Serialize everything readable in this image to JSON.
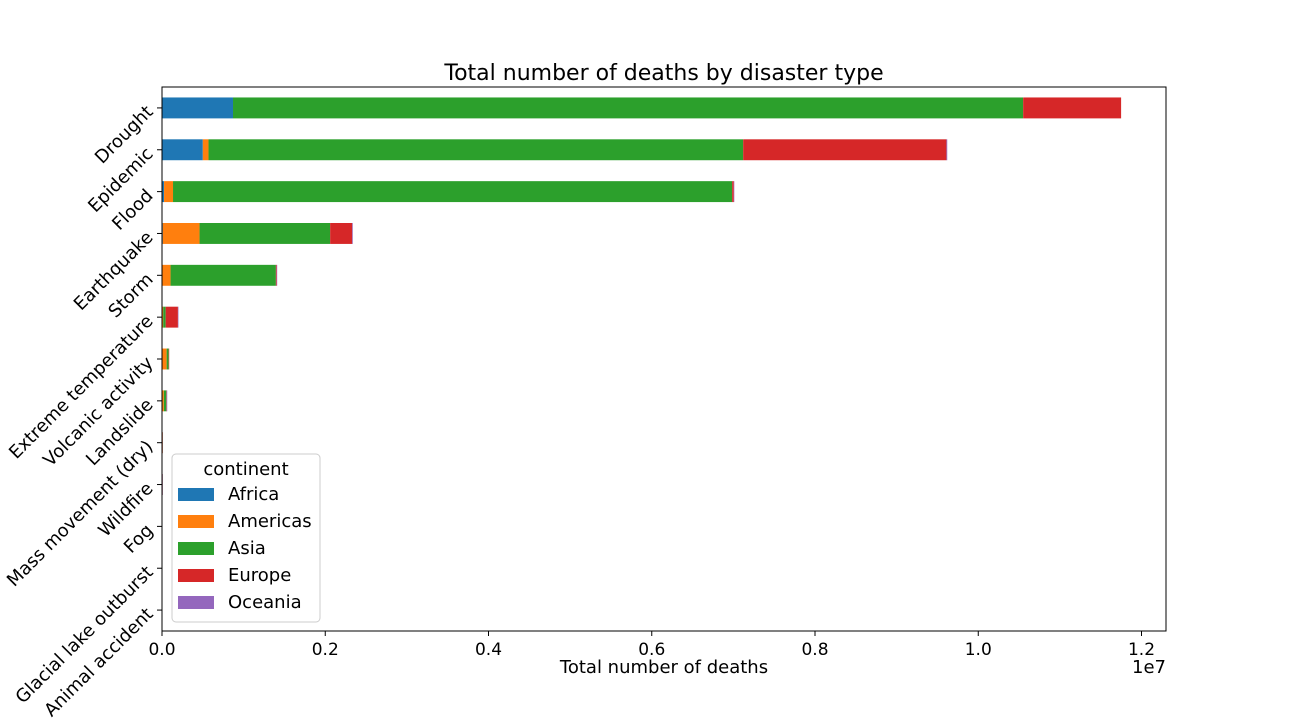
{
  "chart_data": {
    "type": "bar",
    "orientation": "horizontal",
    "stacked": true,
    "title": "Total number of deaths by disaster type",
    "xlabel": "Total number of deaths",
    "ylabel": "",
    "x_scale_label": "1e7",
    "xlim": [
      0,
      12300000
    ],
    "x_ticks": [
      0,
      2000000,
      4000000,
      6000000,
      8000000,
      10000000,
      12000000
    ],
    "x_tick_labels": [
      "0.0",
      "0.2",
      "0.4",
      "0.6",
      "0.8",
      "1.0",
      "1.2"
    ],
    "grid": false,
    "legend_position": "lower-left",
    "legend_title": "continent",
    "categories": [
      "Drought",
      "Epidemic",
      "Flood",
      "Earthquake",
      "Storm",
      "Extreme temperature",
      "Volcanic activity",
      "Landslide",
      "Mass movement (dry)",
      "Wildfire",
      "Fog",
      "Glacial lake outburst",
      "Animal accident"
    ],
    "series": [
      {
        "name": "Africa",
        "color": "#1f77b4",
        "values": [
          870000,
          500000,
          25000,
          10000,
          5000,
          5000,
          2000,
          3000,
          500,
          300,
          0,
          0,
          0
        ]
      },
      {
        "name": "Americas",
        "color": "#ff7f0e",
        "values": [
          0,
          70000,
          110000,
          450000,
          100000,
          10000,
          55000,
          20000,
          1000,
          500,
          0,
          0,
          0
        ]
      },
      {
        "name": "Asia",
        "color": "#2ca02c",
        "values": [
          9680000,
          6550000,
          6850000,
          1600000,
          1290000,
          30000,
          25000,
          30000,
          1000,
          800,
          4000,
          1000,
          0
        ]
      },
      {
        "name": "Europe",
        "color": "#d62728",
        "values": [
          1200000,
          2490000,
          20000,
          270000,
          10000,
          150000,
          1000,
          5000,
          200,
          500,
          0,
          0,
          0
        ]
      },
      {
        "name": "Oceania",
        "color": "#9467bd",
        "values": [
          0,
          10000,
          1000,
          8000,
          1000,
          1000,
          0,
          500,
          0,
          100,
          0,
          0,
          0
        ]
      }
    ]
  }
}
